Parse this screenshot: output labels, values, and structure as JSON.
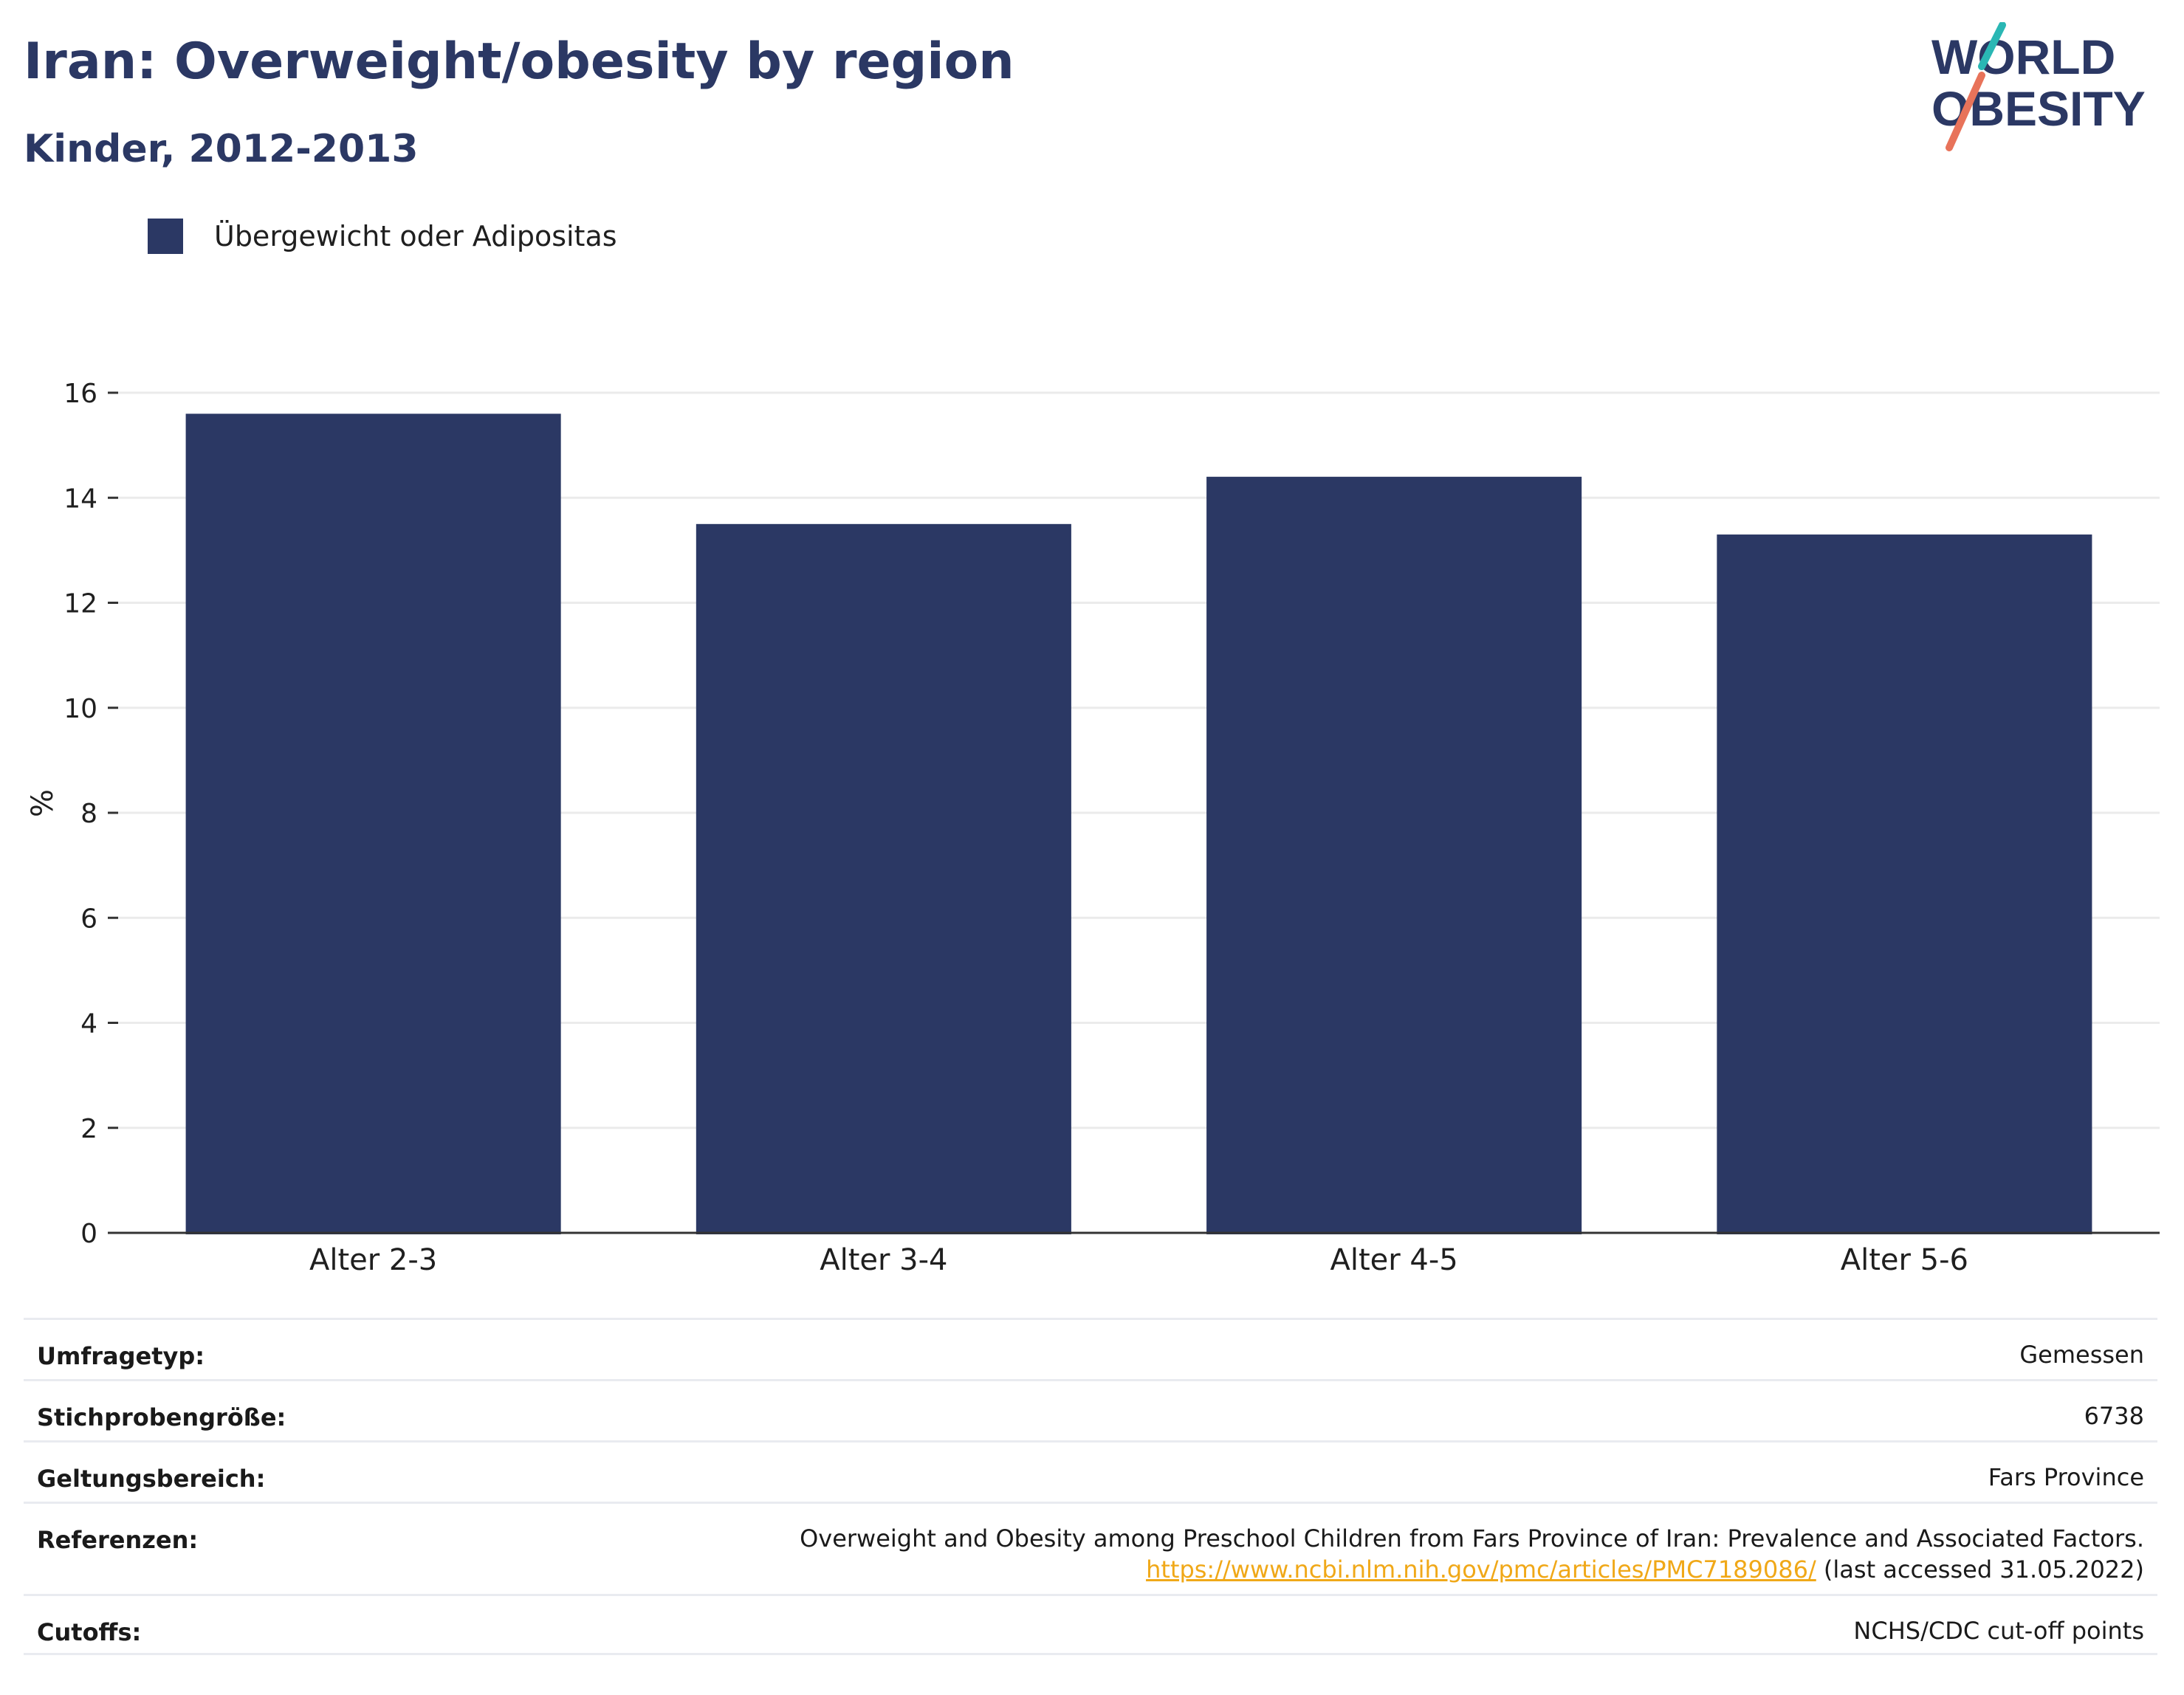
{
  "header": {
    "title": "Iran: Overweight/obesity by region",
    "subtitle": "Kinder, 2012-2013"
  },
  "logo": {
    "line1": "WORLD",
    "line2": "OBESITY",
    "stroke_colors": [
      "#2ab7b4",
      "#e8735a"
    ],
    "text_color": "#2b3864"
  },
  "legend": {
    "label": "Übergewicht oder Adipositas",
    "color": "#2b3864"
  },
  "chart_data": {
    "type": "bar",
    "categories": [
      "Alter 2-3",
      "Alter 3-4",
      "Alter 4-5",
      "Alter 5-6"
    ],
    "series": [
      {
        "name": "Übergewicht oder Adipositas",
        "values": [
          15.6,
          13.5,
          14.4,
          13.3
        ],
        "color": "#2b3864"
      }
    ],
    "title": "Iran: Overweight/obesity by region",
    "subtitle": "Kinder, 2012-2013",
    "xlabel": "",
    "ylabel": "%",
    "ylim": [
      0,
      16
    ],
    "yticks": [
      0,
      2,
      4,
      6,
      8,
      10,
      12,
      14,
      16
    ],
    "grid": true,
    "legend_position": "top-left"
  },
  "meta": {
    "survey_type": {
      "label": "Umfragetyp:",
      "value": "Gemessen"
    },
    "sample_size": {
      "label": "Stichprobengröße:",
      "value": "6738"
    },
    "coverage": {
      "label": "Geltungsbereich:",
      "value": "Fars Province"
    },
    "references": {
      "label": "Referenzen:",
      "text": "Overweight and Obesity among Preschool Children from Fars Province of Iran: Prevalence and Associated Factors.",
      "url": "https://www.ncbi.nlm.nih.gov/pmc/articles/PMC7189086/",
      "accessed": " (last accessed 31.05.2022)"
    },
    "cutoffs": {
      "label": "Cutoffs:",
      "value": "NCHS/CDC cut-off points"
    }
  }
}
